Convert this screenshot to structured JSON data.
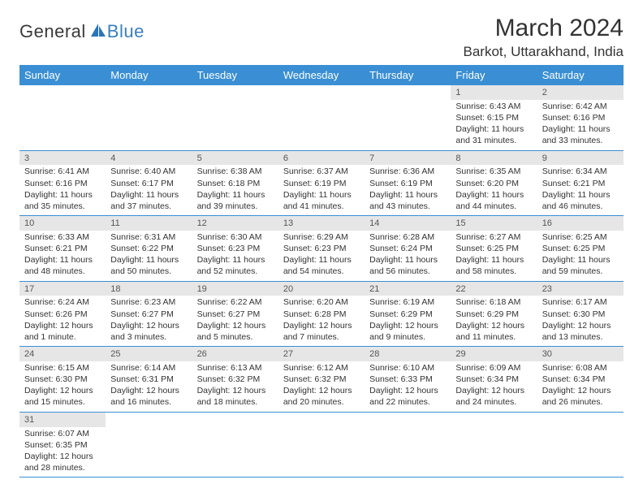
{
  "logo": {
    "word1": "General",
    "word2": "Blue"
  },
  "title": "March 2024",
  "location": "Barkot, Uttarakhand, India",
  "colors": {
    "header_bg": "#3a8fd4",
    "header_text": "#ffffff",
    "daynum_bg": "#e6e6e6",
    "row_border": "#3a8fd4",
    "logo_blue": "#3a7fbf",
    "text": "#333333"
  },
  "daynames": [
    "Sunday",
    "Monday",
    "Tuesday",
    "Wednesday",
    "Thursday",
    "Friday",
    "Saturday"
  ],
  "weeks": [
    [
      null,
      null,
      null,
      null,
      null,
      {
        "n": "1",
        "sunrise": "Sunrise: 6:43 AM",
        "sunset": "Sunset: 6:15 PM",
        "day1": "Daylight: 11 hours",
        "day2": "and 31 minutes."
      },
      {
        "n": "2",
        "sunrise": "Sunrise: 6:42 AM",
        "sunset": "Sunset: 6:16 PM",
        "day1": "Daylight: 11 hours",
        "day2": "and 33 minutes."
      }
    ],
    [
      {
        "n": "3",
        "sunrise": "Sunrise: 6:41 AM",
        "sunset": "Sunset: 6:16 PM",
        "day1": "Daylight: 11 hours",
        "day2": "and 35 minutes."
      },
      {
        "n": "4",
        "sunrise": "Sunrise: 6:40 AM",
        "sunset": "Sunset: 6:17 PM",
        "day1": "Daylight: 11 hours",
        "day2": "and 37 minutes."
      },
      {
        "n": "5",
        "sunrise": "Sunrise: 6:38 AM",
        "sunset": "Sunset: 6:18 PM",
        "day1": "Daylight: 11 hours",
        "day2": "and 39 minutes."
      },
      {
        "n": "6",
        "sunrise": "Sunrise: 6:37 AM",
        "sunset": "Sunset: 6:19 PM",
        "day1": "Daylight: 11 hours",
        "day2": "and 41 minutes."
      },
      {
        "n": "7",
        "sunrise": "Sunrise: 6:36 AM",
        "sunset": "Sunset: 6:19 PM",
        "day1": "Daylight: 11 hours",
        "day2": "and 43 minutes."
      },
      {
        "n": "8",
        "sunrise": "Sunrise: 6:35 AM",
        "sunset": "Sunset: 6:20 PM",
        "day1": "Daylight: 11 hours",
        "day2": "and 44 minutes."
      },
      {
        "n": "9",
        "sunrise": "Sunrise: 6:34 AM",
        "sunset": "Sunset: 6:21 PM",
        "day1": "Daylight: 11 hours",
        "day2": "and 46 minutes."
      }
    ],
    [
      {
        "n": "10",
        "sunrise": "Sunrise: 6:33 AM",
        "sunset": "Sunset: 6:21 PM",
        "day1": "Daylight: 11 hours",
        "day2": "and 48 minutes."
      },
      {
        "n": "11",
        "sunrise": "Sunrise: 6:31 AM",
        "sunset": "Sunset: 6:22 PM",
        "day1": "Daylight: 11 hours",
        "day2": "and 50 minutes."
      },
      {
        "n": "12",
        "sunrise": "Sunrise: 6:30 AM",
        "sunset": "Sunset: 6:23 PM",
        "day1": "Daylight: 11 hours",
        "day2": "and 52 minutes."
      },
      {
        "n": "13",
        "sunrise": "Sunrise: 6:29 AM",
        "sunset": "Sunset: 6:23 PM",
        "day1": "Daylight: 11 hours",
        "day2": "and 54 minutes."
      },
      {
        "n": "14",
        "sunrise": "Sunrise: 6:28 AM",
        "sunset": "Sunset: 6:24 PM",
        "day1": "Daylight: 11 hours",
        "day2": "and 56 minutes."
      },
      {
        "n": "15",
        "sunrise": "Sunrise: 6:27 AM",
        "sunset": "Sunset: 6:25 PM",
        "day1": "Daylight: 11 hours",
        "day2": "and 58 minutes."
      },
      {
        "n": "16",
        "sunrise": "Sunrise: 6:25 AM",
        "sunset": "Sunset: 6:25 PM",
        "day1": "Daylight: 11 hours",
        "day2": "and 59 minutes."
      }
    ],
    [
      {
        "n": "17",
        "sunrise": "Sunrise: 6:24 AM",
        "sunset": "Sunset: 6:26 PM",
        "day1": "Daylight: 12 hours",
        "day2": "and 1 minute."
      },
      {
        "n": "18",
        "sunrise": "Sunrise: 6:23 AM",
        "sunset": "Sunset: 6:27 PM",
        "day1": "Daylight: 12 hours",
        "day2": "and 3 minutes."
      },
      {
        "n": "19",
        "sunrise": "Sunrise: 6:22 AM",
        "sunset": "Sunset: 6:27 PM",
        "day1": "Daylight: 12 hours",
        "day2": "and 5 minutes."
      },
      {
        "n": "20",
        "sunrise": "Sunrise: 6:20 AM",
        "sunset": "Sunset: 6:28 PM",
        "day1": "Daylight: 12 hours",
        "day2": "and 7 minutes."
      },
      {
        "n": "21",
        "sunrise": "Sunrise: 6:19 AM",
        "sunset": "Sunset: 6:29 PM",
        "day1": "Daylight: 12 hours",
        "day2": "and 9 minutes."
      },
      {
        "n": "22",
        "sunrise": "Sunrise: 6:18 AM",
        "sunset": "Sunset: 6:29 PM",
        "day1": "Daylight: 12 hours",
        "day2": "and 11 minutes."
      },
      {
        "n": "23",
        "sunrise": "Sunrise: 6:17 AM",
        "sunset": "Sunset: 6:30 PM",
        "day1": "Daylight: 12 hours",
        "day2": "and 13 minutes."
      }
    ],
    [
      {
        "n": "24",
        "sunrise": "Sunrise: 6:15 AM",
        "sunset": "Sunset: 6:30 PM",
        "day1": "Daylight: 12 hours",
        "day2": "and 15 minutes."
      },
      {
        "n": "25",
        "sunrise": "Sunrise: 6:14 AM",
        "sunset": "Sunset: 6:31 PM",
        "day1": "Daylight: 12 hours",
        "day2": "and 16 minutes."
      },
      {
        "n": "26",
        "sunrise": "Sunrise: 6:13 AM",
        "sunset": "Sunset: 6:32 PM",
        "day1": "Daylight: 12 hours",
        "day2": "and 18 minutes."
      },
      {
        "n": "27",
        "sunrise": "Sunrise: 6:12 AM",
        "sunset": "Sunset: 6:32 PM",
        "day1": "Daylight: 12 hours",
        "day2": "and 20 minutes."
      },
      {
        "n": "28",
        "sunrise": "Sunrise: 6:10 AM",
        "sunset": "Sunset: 6:33 PM",
        "day1": "Daylight: 12 hours",
        "day2": "and 22 minutes."
      },
      {
        "n": "29",
        "sunrise": "Sunrise: 6:09 AM",
        "sunset": "Sunset: 6:34 PM",
        "day1": "Daylight: 12 hours",
        "day2": "and 24 minutes."
      },
      {
        "n": "30",
        "sunrise": "Sunrise: 6:08 AM",
        "sunset": "Sunset: 6:34 PM",
        "day1": "Daylight: 12 hours",
        "day2": "and 26 minutes."
      }
    ],
    [
      {
        "n": "31",
        "sunrise": "Sunrise: 6:07 AM",
        "sunset": "Sunset: 6:35 PM",
        "day1": "Daylight: 12 hours",
        "day2": "and 28 minutes."
      },
      null,
      null,
      null,
      null,
      null,
      null
    ]
  ]
}
